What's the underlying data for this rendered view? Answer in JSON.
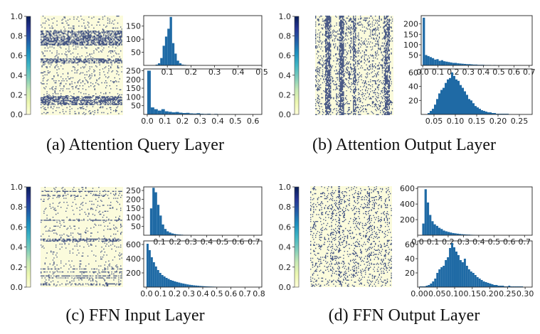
{
  "colormap": {
    "name": "YlGnBu",
    "stops": [
      "#ffffd9",
      "#edf8b1",
      "#c7e9b4",
      "#7fcdbb",
      "#41b6c4",
      "#1d91c0",
      "#225ea8",
      "#253494",
      "#081d58"
    ],
    "ticks": [
      "0.0",
      "0.2",
      "0.4",
      "0.6",
      "0.8",
      "1.0"
    ]
  },
  "bar_color": "#1f6aa5",
  "panels": [
    {
      "caption": "(a) Attention Query Layer",
      "heatmap_pattern": "horizontal-bands",
      "histograms": [
        {
          "type": "bar",
          "xlim": [
            0.0,
            0.5
          ],
          "ylim": [
            0,
            190
          ],
          "x_ticks": [
            "0.1",
            "0.2",
            "0.3",
            "0.4",
            "0.5"
          ],
          "y_ticks": [
            "50",
            "100",
            "150"
          ],
          "bin_start": 0.05,
          "bin_width": 0.01,
          "values": [
            3,
            8,
            28,
            75,
            110,
            140,
            185,
            85,
            45,
            18,
            8,
            3,
            2,
            1
          ]
        },
        {
          "type": "bar",
          "xlim": [
            -0.02,
            0.65
          ],
          "ylim": [
            0,
            260
          ],
          "x_ticks": [
            "0.0",
            "0.1",
            "0.2",
            "0.3",
            "0.4",
            "0.5",
            "0.6"
          ],
          "y_ticks": [
            "50",
            "100",
            "150",
            "200",
            "250"
          ],
          "bin_start": 0.0,
          "bin_width": 0.02,
          "values": [
            250,
            40,
            30,
            22,
            30,
            18,
            15,
            12,
            14,
            10,
            8,
            9,
            6,
            5,
            7,
            4,
            3,
            4,
            2,
            3,
            2,
            1,
            2,
            1,
            1,
            1,
            1
          ]
        }
      ]
    },
    {
      "caption": "(b) Attention Output Layer",
      "heatmap_pattern": "vertical-bands",
      "histograms": [
        {
          "type": "bar",
          "xlim": [
            -0.01,
            0.72
          ],
          "ylim": [
            0,
            240
          ],
          "x_ticks": [
            "0.0",
            "0.1",
            "0.2",
            "0.3",
            "0.4",
            "0.5",
            "0.6",
            "0.7"
          ],
          "y_ticks": [
            "50",
            "100",
            "150",
            "200"
          ],
          "bin_start": 0.0,
          "bin_width": 0.015,
          "values": [
            230,
            50,
            45,
            40,
            35,
            28,
            30,
            22,
            25,
            20,
            18,
            16,
            14,
            12,
            12,
            10,
            9,
            8,
            7,
            6,
            6,
            5,
            4,
            4,
            3,
            3,
            3,
            2,
            2,
            2,
            1,
            2,
            1,
            1,
            1,
            1,
            1,
            0,
            1,
            0,
            1,
            0,
            1
          ]
        },
        {
          "type": "bar",
          "xlim": [
            0.02,
            0.28
          ],
          "ylim": [
            0,
            65
          ],
          "x_ticks": [
            "0.05",
            "0.10",
            "0.15",
            "0.20",
            "0.25"
          ],
          "y_ticks": [
            "20",
            "40",
            "60"
          ],
          "bin_start": 0.035,
          "bin_width": 0.005,
          "values": [
            2,
            5,
            8,
            14,
            22,
            30,
            35,
            38,
            45,
            50,
            52,
            60,
            55,
            50,
            48,
            42,
            38,
            33,
            28,
            22,
            20,
            16,
            12,
            10,
            8,
            6,
            5,
            4,
            3,
            3,
            2,
            2,
            1,
            1,
            1,
            1,
            1,
            1
          ]
        }
      ]
    },
    {
      "caption": "(c) FFN Input Layer",
      "heatmap_pattern": "sparse-horizontal",
      "histograms": [
        {
          "type": "bar",
          "xlim": [
            0.0,
            0.75
          ],
          "ylim": [
            0,
            270
          ],
          "x_ticks": [
            "0.1",
            "0.2",
            "0.3",
            "0.4",
            "0.5",
            "0.6",
            "0.7"
          ],
          "y_ticks": [
            "50",
            "100",
            "150",
            "200",
            "250"
          ],
          "bin_start": 0.04,
          "bin_width": 0.015,
          "values": [
            150,
            265,
            240,
            170,
            110,
            60,
            35,
            22,
            15,
            10,
            7,
            5,
            4,
            3,
            2,
            2,
            1,
            1
          ]
        },
        {
          "type": "bar",
          "xlim": [
            -0.02,
            0.82
          ],
          "ylim": [
            0,
            650
          ],
          "x_ticks": [
            "0.0",
            "0.1",
            "0.2",
            "0.3",
            "0.4",
            "0.5",
            "0.6",
            "0.7",
            "0.8"
          ],
          "y_ticks": [
            "200",
            "400",
            "600"
          ],
          "bin_start": 0.0,
          "bin_width": 0.015,
          "values": [
            610,
            520,
            420,
            350,
            290,
            240,
            200,
            170,
            150,
            130,
            115,
            100,
            90,
            80,
            72,
            64,
            56,
            50,
            44,
            38,
            33,
            29,
            25,
            22,
            19,
            16,
            14,
            12,
            10,
            9,
            8,
            7,
            6,
            5,
            4,
            4,
            3,
            3,
            2,
            2,
            2,
            1,
            1
          ]
        }
      ]
    },
    {
      "caption": "(d) FFN Output Layer",
      "heatmap_pattern": "uniform",
      "histograms": [
        {
          "type": "bar",
          "xlim": [
            0.0,
            0.75
          ],
          "ylim": [
            0,
            620
          ],
          "x_ticks": [
            "0.0",
            "0.1",
            "0.2",
            "0.3",
            "0.4",
            "0.5",
            "0.6",
            "0.7"
          ],
          "y_ticks": [
            "200",
            "400",
            "600"
          ],
          "bin_start": 0.03,
          "bin_width": 0.015,
          "values": [
            150,
            590,
            420,
            260,
            180,
            140,
            120,
            95,
            80,
            60,
            50,
            42,
            35,
            28,
            24,
            20,
            16,
            13,
            11,
            9,
            8,
            6,
            5,
            4,
            4,
            3,
            3,
            2,
            2,
            2,
            1,
            1,
            1,
            1
          ]
        },
        {
          "type": "bar",
          "xlim": [
            -0.005,
            0.32
          ],
          "ylim": [
            0,
            65
          ],
          "x_ticks": [
            "0.00",
            "0.05",
            "0.10",
            "0.15",
            "0.20",
            "0.25",
            "0.30"
          ],
          "y_ticks": [
            "20",
            "40",
            "60"
          ],
          "bin_start": 0.0,
          "bin_width": 0.006,
          "values": [
            1,
            1,
            1,
            2,
            3,
            5,
            8,
            12,
            20,
            25,
            28,
            30,
            38,
            42,
            55,
            62,
            56,
            50,
            45,
            38,
            35,
            40,
            30,
            25,
            22,
            20,
            17,
            14,
            12,
            10,
            8,
            7,
            6,
            5,
            4,
            3,
            3,
            2,
            2,
            2,
            1,
            1,
            2,
            1,
            1,
            1,
            1,
            1,
            1
          ]
        }
      ]
    }
  ]
}
